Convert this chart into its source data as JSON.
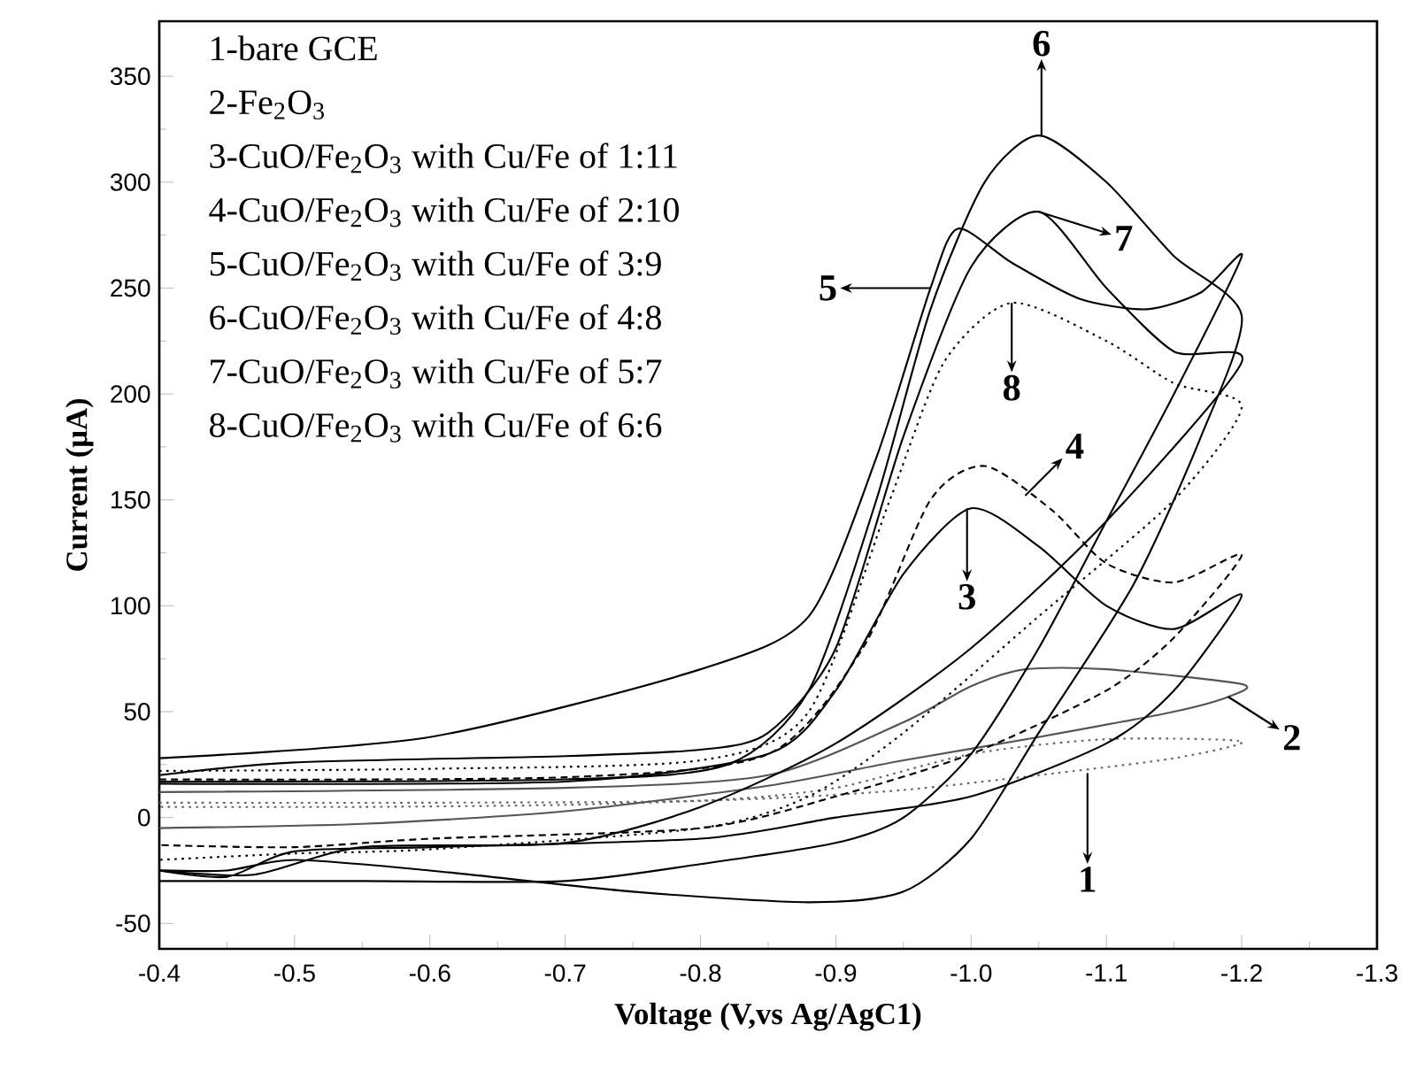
{
  "chart_data": {
    "type": "line",
    "xlabel": "Voltage (V,vs Ag/AgC1)",
    "ylabel": "Current (μA)",
    "xlim": [
      -0.4,
      -1.3
    ],
    "ylim": [
      -62,
      376
    ],
    "xticks": [
      -0.4,
      -0.5,
      -0.6,
      -0.7,
      -0.8,
      -0.9,
      {
        "value": -1.0,
        "label": "-1.0"
      },
      -1.1,
      -1.2,
      -1.3
    ],
    "yticks": [
      -50,
      0,
      50,
      100,
      150,
      200,
      250,
      300,
      350
    ],
    "series": [
      {
        "color": "#666666",
        "line_style": "dotted",
        "x": [
          -0.4,
          -0.6,
          -0.8,
          -0.9,
          -1.0,
          -1.1,
          -1.2,
          -1.15,
          -1.05,
          -0.95,
          -0.85,
          -0.7,
          -0.55,
          -0.4
        ],
        "values": [
          7,
          7,
          8,
          14,
          30,
          37,
          36,
          28,
          20,
          13,
          9,
          6,
          5,
          5
        ]
      },
      {
        "color": "#555555",
        "line_style": "solid",
        "x": [
          -0.4,
          -0.7,
          -0.85,
          -0.95,
          -1.0,
          -1.04,
          -1.1,
          -1.2,
          -1.19,
          -1.15,
          -1.05,
          -0.95,
          -0.85,
          -0.7,
          -0.55,
          -0.4
        ],
        "values": [
          12,
          14,
          20,
          45,
          62,
          70,
          70,
          63,
          57,
          50,
          38,
          27,
          15,
          3,
          -3,
          -5
        ]
      },
      {
        "color": "#000000",
        "line_style": "solid",
        "x": [
          -0.4,
          -0.7,
          -0.85,
          -0.9,
          -0.95,
          -1.0,
          -1.05,
          -1.1,
          -1.15,
          -1.2,
          -1.15,
          -1.1,
          -1.0,
          -0.9,
          -0.8,
          -0.6,
          -0.5,
          -0.45,
          -0.4
        ],
        "values": [
          16,
          17,
          30,
          60,
          115,
          146,
          128,
          100,
          89,
          105,
          60,
          35,
          10,
          0,
          -10,
          -14,
          -16,
          -28,
          -25
        ]
      },
      {
        "color": "#000000",
        "line_style": "dashed",
        "x": [
          -0.4,
          -0.7,
          -0.85,
          -0.92,
          -0.97,
          -1.01,
          -1.06,
          -1.1,
          -1.15,
          -1.2,
          -1.15,
          -1.1,
          -1.0,
          -0.9,
          -0.8,
          -0.6,
          -0.5,
          -0.4
        ],
        "values": [
          18,
          19,
          30,
          80,
          150,
          166,
          145,
          120,
          111,
          124,
          85,
          60,
          30,
          10,
          -5,
          -10,
          -14,
          -13
        ]
      },
      {
        "color": "#000000",
        "line_style": "solid",
        "x": [
          -0.4,
          -0.6,
          -0.8,
          -0.88,
          -0.93,
          -0.97,
          -0.99,
          -1.03,
          -1.08,
          -1.13,
          -1.17,
          -1.2,
          -1.15,
          -1.1,
          -1.05,
          -1.0,
          -0.95,
          -0.9,
          -0.8,
          -0.7,
          -0.55,
          -0.4
        ],
        "values": [
          28,
          38,
          70,
          95,
          170,
          250,
          278,
          262,
          245,
          240,
          248,
          265,
          200,
          140,
          80,
          30,
          0,
          -12,
          -22,
          -30,
          -30,
          -30
        ]
      },
      {
        "color": "#000000",
        "line_style": "solid",
        "x": [
          -0.4,
          -0.7,
          -0.82,
          -0.88,
          -0.93,
          -0.97,
          -1.01,
          -1.05,
          -1.1,
          -1.15,
          -1.2,
          -1.17,
          -1.12,
          -1.05,
          -1.0,
          -0.95,
          -0.88,
          -0.75,
          -0.6,
          -0.5,
          -0.45,
          -0.4
        ],
        "values": [
          17,
          18,
          25,
          60,
          150,
          240,
          300,
          322,
          300,
          265,
          237,
          180,
          110,
          40,
          -10,
          -35,
          -40,
          -35,
          -25,
          -20,
          -25,
          -25
        ]
      },
      {
        "color": "#000000",
        "line_style": "solid",
        "x": [
          -0.4,
          -0.5,
          -0.7,
          -0.8,
          -0.85,
          -0.9,
          -0.95,
          -1.0,
          -1.05,
          -1.1,
          -1.15,
          -1.2,
          -1.1,
          -1.0,
          -0.9,
          -0.8,
          -0.7,
          -0.55,
          -0.47,
          -0.4
        ],
        "values": [
          20,
          26,
          29,
          32,
          40,
          80,
          180,
          260,
          286,
          250,
          220,
          215,
          140,
          80,
          35,
          5,
          -12,
          -14,
          -27,
          -25
        ]
      },
      {
        "color": "#000000",
        "line_style": "dotted",
        "x": [
          -0.4,
          -0.6,
          -0.8,
          -0.88,
          -0.94,
          -0.98,
          -1.03,
          -1.1,
          -1.15,
          -1.2,
          -1.15,
          -1.05,
          -0.95,
          -0.88,
          -0.8,
          -0.6,
          -0.5,
          -0.4
        ],
        "values": [
          22,
          23,
          27,
          50,
          150,
          215,
          243,
          225,
          205,
          194,
          150,
          95,
          40,
          10,
          -5,
          -15,
          -17,
          -20
        ]
      }
    ],
    "annotations": [
      "1-bare GCE",
      "2-Fe$_{2}$O$_{3}$",
      "3-CuO/Fe$_{2}$O$_{3}$ with Cu/Fe of 1:11",
      "4-CuO/Fe$_{2}$O$_{3}$ with Cu/Fe of 2:10",
      "5-CuO/Fe$_{2}$O$_{3}$ with Cu/Fe of 3:9",
      "6-CuO/Fe$_{2}$O$_{3}$ with Cu/Fe of 4:8",
      "7-CuO/Fe$_{2}$O$_{3}$ with Cu/Fe of 5:7",
      "8-CuO/Fe$_{2}$O$_{3}$ with Cu/Fe of 6:6",
      {
        "text": "1",
        "x": -1.086,
        "y": 21
      },
      {
        "text": "2",
        "x": -1.19,
        "y": 57
      },
      {
        "text": "3",
        "x": -0.997,
        "y": 146
      },
      {
        "text": "4",
        "x": -1.04,
        "y": 152
      },
      {
        "text": "5",
        "x": -0.97,
        "y": 250
      },
      {
        "text": "6",
        "x": -1.052,
        "y": 322
      },
      {
        "text": "7",
        "x": -1.05,
        "y": 286
      },
      {
        "text": "8",
        "x": -1.03,
        "y": 243
      }
    ]
  }
}
